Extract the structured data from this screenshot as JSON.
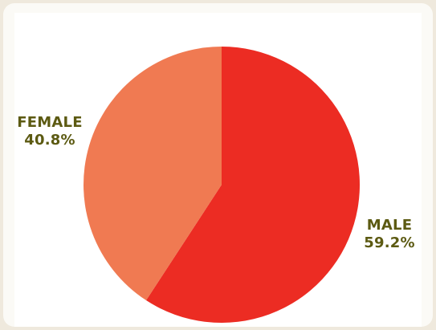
{
  "chart_data": {
    "type": "pie",
    "title": "",
    "slices": [
      {
        "label": "MALE",
        "value": 59.2,
        "value_label": "59.2%",
        "color": "#ec2c23"
      },
      {
        "label": "FEMALE",
        "value": 40.8,
        "value_label": "40.8%",
        "color": "#f07a52"
      }
    ],
    "label_color": "#5c5a12",
    "background": "#ffffff"
  }
}
